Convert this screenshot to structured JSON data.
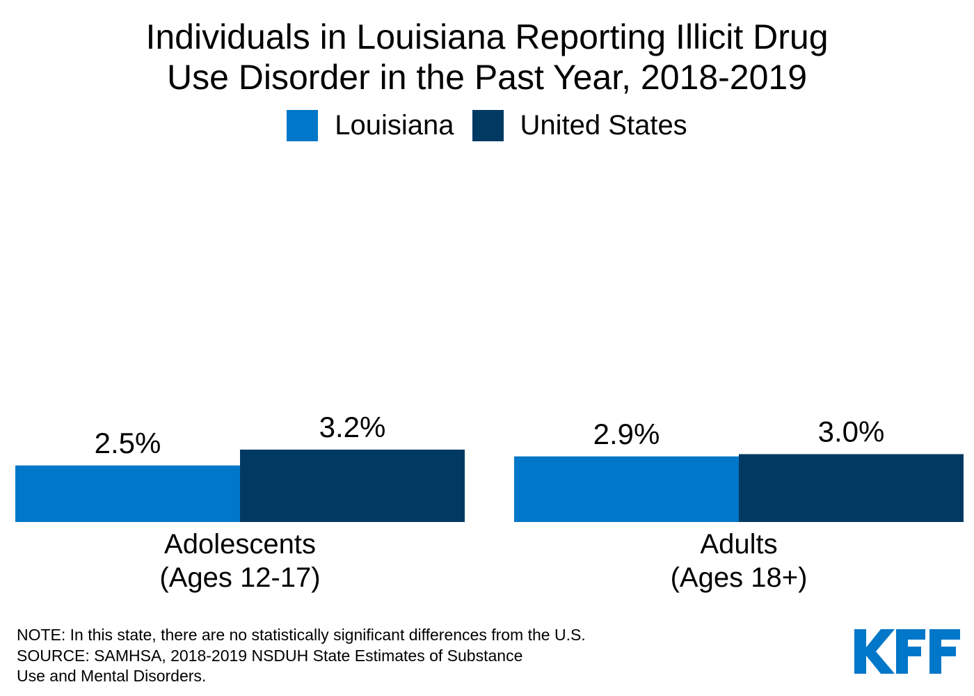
{
  "title_lines": [
    "Individuals in Louisiana Reporting Illicit Drug",
    "Use Disorder in the Past Year, 2018-2019"
  ],
  "note_lines": [
    "NOTE: In this state, there are no statistically significant differences from the U.S.",
    "SOURCE: SAMHSA, 2018-2019 NSDUH State Estimates of Substance",
    "Use and Mental Disorders."
  ],
  "logo_text": "KFF",
  "colors": {
    "louisiana": "#0077c8",
    "united_states": "#003a63",
    "logo": "#0077c8"
  },
  "chart_data": {
    "type": "bar",
    "title": "Individuals in Louisiana Reporting Illicit Drug Use Disorder in the Past Year, 2018-2019",
    "categories": [
      [
        "Adolescents",
        "(Ages 12-17)"
      ],
      [
        "Adults",
        "(Ages 18+)"
      ]
    ],
    "series": [
      {
        "name": "Louisiana",
        "values": [
          2.5,
          2.9
        ],
        "labels": [
          "2.5%",
          "2.9%"
        ],
        "color": "#0077c8"
      },
      {
        "name": "United States",
        "values": [
          3.2,
          3.0
        ],
        "labels": [
          "3.2%",
          "3.0%"
        ],
        "color": "#003a63"
      }
    ],
    "unit": "%",
    "legend_position": "top-center",
    "grid": false,
    "xlabel": "",
    "ylabel": ""
  }
}
